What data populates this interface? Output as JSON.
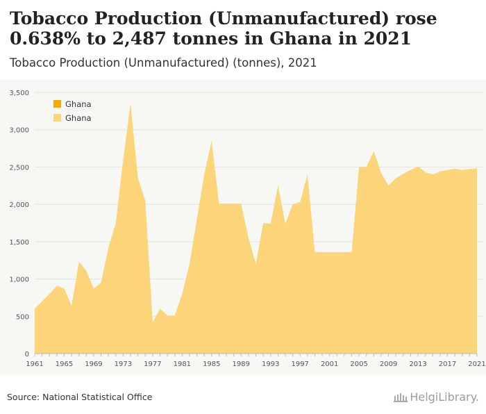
{
  "header": {
    "title": "Tobacco Production (Unmanufactured) rose 0.638% to 2,487 tonnes in Ghana in 2021",
    "subtitle": "Tobacco Production (Unmanufactured) (tonnes), 2021"
  },
  "footer": {
    "source": "Source: National Statistical Office",
    "logo_text": "HelgiLibrary."
  },
  "colors": {
    "area": "#fcd57a",
    "legend_primary": "#f6aa00",
    "legend_secondary": "#fcd57a",
    "background": "#f7f7f3"
  },
  "chart_data": {
    "type": "area",
    "title": "Tobacco Production (Unmanufactured) rose 0.638% to 2,487 tonnes in Ghana in 2021",
    "subtitle": "Tobacco Production (Unmanufactured) (tonnes), 2021",
    "xlabel": "",
    "ylabel": "",
    "ylim": [
      0,
      3500
    ],
    "yticks": [
      "0",
      "500",
      "1,000",
      "1,500",
      "2,000",
      "2,500",
      "3,000",
      "3,500"
    ],
    "xticks": [
      "1961",
      "1965",
      "1969",
      "1973",
      "1977",
      "1981",
      "1985",
      "1989",
      "1993",
      "1997",
      "2001",
      "2005",
      "2009",
      "2013",
      "2017",
      "2021"
    ],
    "grid": true,
    "legend_position": "top-left",
    "legend": [
      "Ghana",
      "Ghana"
    ],
    "x": [
      1961,
      1962,
      1963,
      1964,
      1965,
      1966,
      1967,
      1968,
      1969,
      1970,
      1971,
      1972,
      1973,
      1974,
      1975,
      1976,
      1977,
      1978,
      1979,
      1980,
      1981,
      1982,
      1983,
      1984,
      1985,
      1986,
      1987,
      1988,
      1989,
      1990,
      1991,
      1992,
      1993,
      1994,
      1995,
      1996,
      1997,
      1998,
      1999,
      2000,
      2001,
      2002,
      2003,
      2004,
      2005,
      2006,
      2007,
      2008,
      2009,
      2010,
      2011,
      2012,
      2013,
      2014,
      2015,
      2016,
      2017,
      2018,
      2019,
      2020,
      2021
    ],
    "series": [
      {
        "name": "Ghana",
        "values": [
          600,
          700,
          800,
          910,
          870,
          640,
          1230,
          1110,
          870,
          950,
          1420,
          1750,
          2600,
          3350,
          2350,
          2050,
          420,
          600,
          510,
          510,
          800,
          1200,
          1800,
          2400,
          2850,
          2010,
          2010,
          2010,
          2010,
          1550,
          1200,
          1750,
          1740,
          2250,
          1740,
          2000,
          2030,
          2400,
          1360,
          1360,
          1360,
          1360,
          1360,
          1360,
          2500,
          2500,
          2710,
          2420,
          2250,
          2350,
          2410,
          2460,
          2510,
          2430,
          2400,
          2440,
          2460,
          2480,
          2460,
          2471,
          2487
        ]
      }
    ]
  }
}
